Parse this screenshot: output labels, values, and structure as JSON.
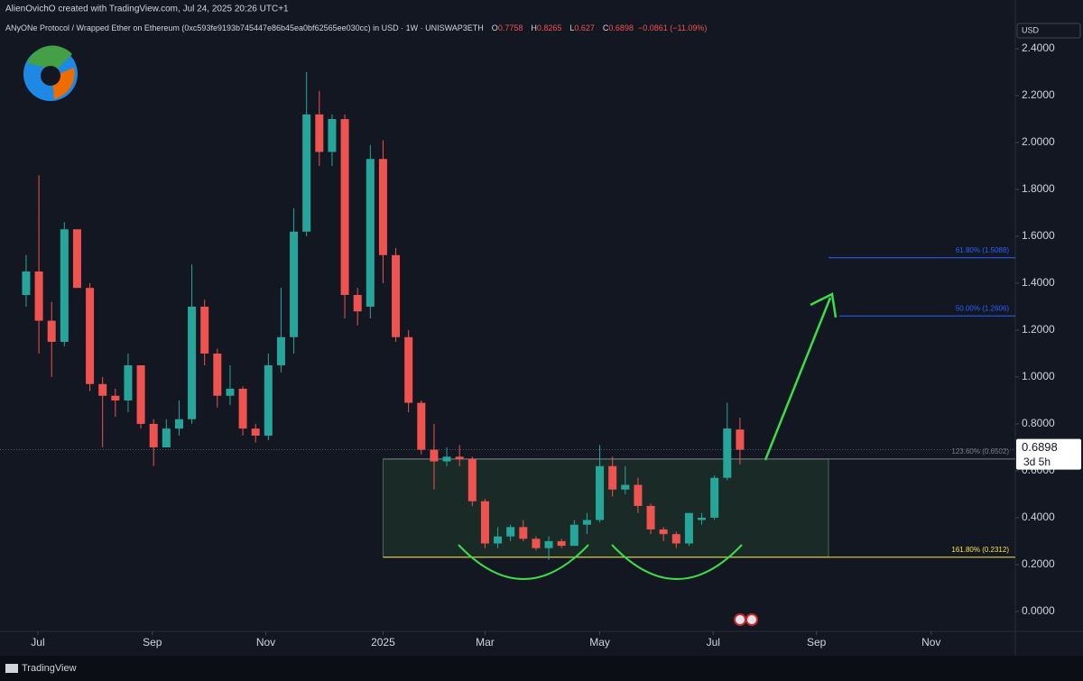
{
  "chart_data": {
    "type": "candlestick",
    "author_line": "AlienOvichO created with TradingView.com, Jul 24, 2025 20:26 UTC+1",
    "title": "ANyONe Protocol / Wrapped Ether on Ethereum (0xc593fe9193b745447e86b45ea0bf62565ee030cc) in USD · 1W · UNISWAP3ETH",
    "change": "−0.0861 (−11.09%)",
    "currency": "USD",
    "countdown": "3d 5h",
    "brand": "TradingView",
    "up_color": "#26a69a",
    "down_color": "#ef5350",
    "ylim": [
      -0.085,
      2.608
    ],
    "yticks": [
      {
        "value": 0,
        "label": "0.0000"
      },
      {
        "value": 0.2,
        "label": "0.2000"
      },
      {
        "value": 0.4,
        "label": "0.4000"
      },
      {
        "value": 0.6,
        "label": "0.6000"
      },
      {
        "value": 0.8,
        "label": "0.8000"
      },
      {
        "value": 1,
        "label": "1.0000"
      },
      {
        "value": 1.2,
        "label": "1.2000"
      },
      {
        "value": 1.4,
        "label": "1.4000"
      },
      {
        "value": 1.6,
        "label": "1.6000"
      },
      {
        "value": 1.8,
        "label": "1.8000"
      },
      {
        "value": 2,
        "label": "2.0000"
      },
      {
        "value": 2.2,
        "label": "2.2000"
      },
      {
        "value": 2.4,
        "label": "2.4000"
      }
    ],
    "xlim": [
      -2.05,
      77.6
    ],
    "xticks": [
      {
        "value": 0.92,
        "label": "Jul"
      },
      {
        "value": 9.9,
        "label": "Sep"
      },
      {
        "value": 18.8,
        "label": "Nov"
      },
      {
        "value": 28,
        "label": "2025"
      },
      {
        "value": 36,
        "label": "Mar"
      },
      {
        "value": 45,
        "label": "May"
      },
      {
        "value": 53.9,
        "label": "Jul"
      },
      {
        "value": 62,
        "label": "Sep"
      },
      {
        "value": 71,
        "label": "Nov"
      }
    ],
    "levels": [
      {
        "label": "61.80% (1.5088)",
        "value": 1.5088,
        "color": "#2962ff"
      },
      {
        "label": "50.00% (1.2606)",
        "value": 1.2606,
        "color": "#2962ff"
      },
      {
        "label": "123.60% (0.6502)",
        "value": 0.6502,
        "color": "#787b86"
      },
      {
        "label": "161.80% (0.2312)",
        "value": 0.2312,
        "color": "#f7e34b"
      }
    ],
    "open": [
      1.35,
      1.45,
      1.24,
      1.15,
      1.63,
      1.38,
      0.97,
      0.92,
      0.9,
      1.05,
      0.8,
      0.7,
      0.78,
      0.82,
      1.3,
      1.1,
      0.92,
      0.95,
      0.78,
      0.75,
      1.05,
      1.17,
      1.62,
      2.12,
      1.96,
      2.1,
      1.35,
      1.3,
      1.93,
      1.52,
      1.17,
      0.89,
      0.69,
      0.64,
      0.66,
      0.65,
      0.47,
      0.29,
      0.32,
      0.36,
      0.31,
      0.27,
      0.3,
      0.28,
      0.37,
      0.39,
      0.62,
      0.52,
      0.54,
      0.45,
      0.35,
      0.33,
      0.29,
      0.39,
      0.4,
      0.57,
      0.7758
    ],
    "high": [
      1.52,
      1.86,
      1.32,
      1.66,
      1.63,
      1.4,
      1.0,
      0.95,
      1.1,
      1.05,
      0.82,
      0.82,
      0.9,
      1.48,
      1.33,
      1.12,
      1.05,
      0.96,
      0.8,
      1.1,
      1.38,
      1.72,
      2.3,
      2.22,
      2.12,
      2.12,
      1.38,
      1.99,
      2.01,
      1.55,
      1.2,
      0.9,
      0.8,
      0.7,
      0.71,
      0.66,
      0.48,
      0.36,
      0.37,
      0.39,
      0.32,
      0.32,
      0.31,
      0.39,
      0.42,
      0.71,
      0.66,
      0.62,
      0.57,
      0.46,
      0.36,
      0.34,
      0.42,
      0.42,
      0.58,
      0.89,
      0.8265
    ],
    "low": [
      1.3,
      1.1,
      1.0,
      1.13,
      1.38,
      0.94,
      0.7,
      0.83,
      0.85,
      0.78,
      0.62,
      0.7,
      0.75,
      0.8,
      1.05,
      0.87,
      0.88,
      0.75,
      0.72,
      0.73,
      1.02,
      1.1,
      1.6,
      1.9,
      1.9,
      1.25,
      1.22,
      1.25,
      1.4,
      1.15,
      0.85,
      0.67,
      0.52,
      0.62,
      0.62,
      0.45,
      0.27,
      0.27,
      0.3,
      0.3,
      0.26,
      0.22,
      0.27,
      0.28,
      0.33,
      0.38,
      0.49,
      0.5,
      0.42,
      0.33,
      0.3,
      0.27,
      0.28,
      0.37,
      0.39,
      0.56,
      0.627
    ],
    "close": [
      1.45,
      1.24,
      1.15,
      1.63,
      1.38,
      0.97,
      0.92,
      0.9,
      1.05,
      0.8,
      0.7,
      0.78,
      0.82,
      1.3,
      1.1,
      0.92,
      0.95,
      0.78,
      0.75,
      1.05,
      1.17,
      1.62,
      2.12,
      1.96,
      2.1,
      1.35,
      1.28,
      1.93,
      1.52,
      1.17,
      0.89,
      0.69,
      0.64,
      0.66,
      0.65,
      0.47,
      0.29,
      0.32,
      0.36,
      0.31,
      0.27,
      0.3,
      0.28,
      0.37,
      0.39,
      0.62,
      0.52,
      0.54,
      0.45,
      0.35,
      0.33,
      0.29,
      0.42,
      0.4,
      0.57,
      0.78,
      0.6898
    ]
  }
}
